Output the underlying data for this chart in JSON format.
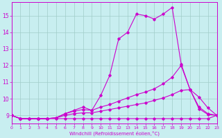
{
  "xlabel": "Windchill (Refroidissement éolien,°C)",
  "background_color": "#c8eef0",
  "line_color": "#cc00cc",
  "grid_color": "#a0ccc8",
  "xlim": [
    0,
    23
  ],
  "ylim": [
    8.5,
    15.8
  ],
  "yticks": [
    9,
    10,
    11,
    12,
    13,
    14,
    15
  ],
  "xticks": [
    0,
    1,
    2,
    3,
    4,
    5,
    6,
    7,
    8,
    9,
    10,
    11,
    12,
    13,
    14,
    15,
    16,
    17,
    18,
    19,
    20,
    21,
    22,
    23
  ],
  "series": [
    [
      9.0,
      8.8,
      8.8,
      8.8,
      8.8,
      8.85,
      9.1,
      9.3,
      9.5,
      9.3,
      10.2,
      11.4,
      13.6,
      14.0,
      15.1,
      15.0,
      14.8,
      15.1,
      15.5,
      12.1,
      10.55,
      10.1,
      9.45,
      9.0
    ],
    [
      9.0,
      8.8,
      8.8,
      8.8,
      8.8,
      8.85,
      9.1,
      9.25,
      9.35,
      9.3,
      9.5,
      9.65,
      9.85,
      10.05,
      10.25,
      10.4,
      10.6,
      10.9,
      11.3,
      12.0,
      10.55,
      9.5,
      9.1,
      9.0
    ],
    [
      9.0,
      8.8,
      8.8,
      8.8,
      8.8,
      8.85,
      9.0,
      9.1,
      9.15,
      9.15,
      9.25,
      9.35,
      9.45,
      9.55,
      9.65,
      9.75,
      9.9,
      10.05,
      10.25,
      10.5,
      10.55,
      9.4,
      9.05,
      9.0
    ],
    [
      9.0,
      8.8,
      8.8,
      8.8,
      8.8,
      8.8,
      8.8,
      8.8,
      8.8,
      8.8,
      8.8,
      8.8,
      8.8,
      8.8,
      8.8,
      8.8,
      8.8,
      8.8,
      8.8,
      8.8,
      8.8,
      8.8,
      8.8,
      9.0
    ]
  ]
}
